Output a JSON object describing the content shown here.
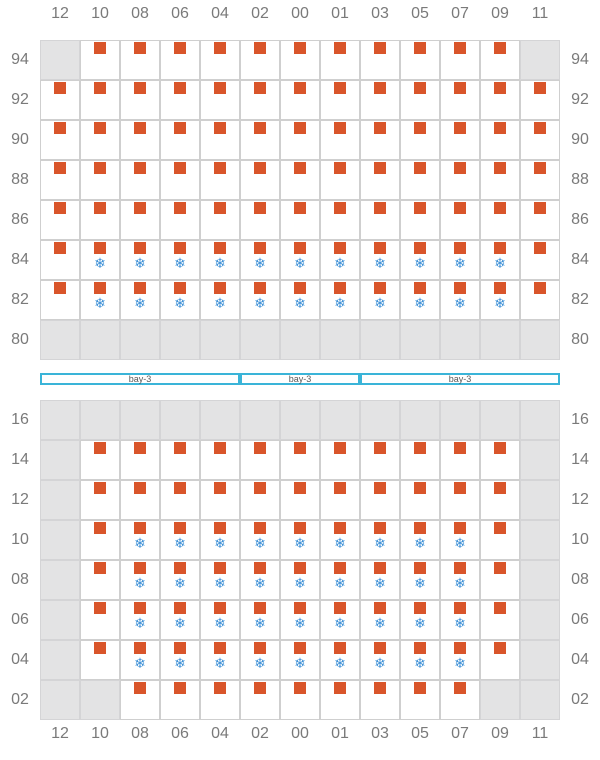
{
  "columns": [
    "12",
    "10",
    "08",
    "06",
    "04",
    "02",
    "00",
    "01",
    "03",
    "05",
    "07",
    "09",
    "11"
  ],
  "deck": {
    "rows": [
      "94",
      "92",
      "90",
      "88",
      "86",
      "84",
      "82",
      "80"
    ],
    "blocked": [
      [
        0,
        0
      ],
      [
        0,
        12
      ],
      [
        7,
        0
      ],
      [
        7,
        1
      ],
      [
        7,
        2
      ],
      [
        7,
        3
      ],
      [
        7,
        4
      ],
      [
        7,
        5
      ],
      [
        7,
        6
      ],
      [
        7,
        7
      ],
      [
        7,
        8
      ],
      [
        7,
        9
      ],
      [
        7,
        10
      ],
      [
        7,
        11
      ],
      [
        7,
        12
      ]
    ],
    "containers": [
      [
        0,
        1
      ],
      [
        0,
        2
      ],
      [
        0,
        3
      ],
      [
        0,
        4
      ],
      [
        0,
        5
      ],
      [
        0,
        6
      ],
      [
        0,
        7
      ],
      [
        0,
        8
      ],
      [
        0,
        9
      ],
      [
        0,
        10
      ],
      [
        0,
        11
      ],
      [
        1,
        0
      ],
      [
        1,
        1
      ],
      [
        1,
        2
      ],
      [
        1,
        3
      ],
      [
        1,
        4
      ],
      [
        1,
        5
      ],
      [
        1,
        6
      ],
      [
        1,
        7
      ],
      [
        1,
        8
      ],
      [
        1,
        9
      ],
      [
        1,
        10
      ],
      [
        1,
        11
      ],
      [
        1,
        12
      ],
      [
        2,
        0
      ],
      [
        2,
        1
      ],
      [
        2,
        2
      ],
      [
        2,
        3
      ],
      [
        2,
        4
      ],
      [
        2,
        5
      ],
      [
        2,
        6
      ],
      [
        2,
        7
      ],
      [
        2,
        8
      ],
      [
        2,
        9
      ],
      [
        2,
        10
      ],
      [
        2,
        11
      ],
      [
        2,
        12
      ],
      [
        3,
        0
      ],
      [
        3,
        1
      ],
      [
        3,
        2
      ],
      [
        3,
        3
      ],
      [
        3,
        4
      ],
      [
        3,
        5
      ],
      [
        3,
        6
      ],
      [
        3,
        7
      ],
      [
        3,
        8
      ],
      [
        3,
        9
      ],
      [
        3,
        10
      ],
      [
        3,
        11
      ],
      [
        3,
        12
      ],
      [
        4,
        0
      ],
      [
        4,
        1
      ],
      [
        4,
        2
      ],
      [
        4,
        3
      ],
      [
        4,
        4
      ],
      [
        4,
        5
      ],
      [
        4,
        6
      ],
      [
        4,
        7
      ],
      [
        4,
        8
      ],
      [
        4,
        9
      ],
      [
        4,
        10
      ],
      [
        4,
        11
      ],
      [
        4,
        12
      ],
      [
        5,
        0
      ],
      [
        5,
        1
      ],
      [
        5,
        2
      ],
      [
        5,
        3
      ],
      [
        5,
        4
      ],
      [
        5,
        5
      ],
      [
        5,
        6
      ],
      [
        5,
        7
      ],
      [
        5,
        8
      ],
      [
        5,
        9
      ],
      [
        5,
        10
      ],
      [
        5,
        11
      ],
      [
        5,
        12
      ],
      [
        6,
        0
      ],
      [
        6,
        1
      ],
      [
        6,
        2
      ],
      [
        6,
        3
      ],
      [
        6,
        4
      ],
      [
        6,
        5
      ],
      [
        6,
        6
      ],
      [
        6,
        7
      ],
      [
        6,
        8
      ],
      [
        6,
        9
      ],
      [
        6,
        10
      ],
      [
        6,
        11
      ],
      [
        6,
        12
      ]
    ],
    "reefers": [
      [
        5,
        1
      ],
      [
        5,
        2
      ],
      [
        5,
        3
      ],
      [
        5,
        4
      ],
      [
        5,
        5
      ],
      [
        5,
        6
      ],
      [
        5,
        7
      ],
      [
        5,
        8
      ],
      [
        5,
        9
      ],
      [
        5,
        10
      ],
      [
        5,
        11
      ],
      [
        6,
        1
      ],
      [
        6,
        2
      ],
      [
        6,
        3
      ],
      [
        6,
        4
      ],
      [
        6,
        5
      ],
      [
        6,
        6
      ],
      [
        6,
        7
      ],
      [
        6,
        8
      ],
      [
        6,
        9
      ],
      [
        6,
        10
      ],
      [
        6,
        11
      ]
    ]
  },
  "hatch_covers": [
    {
      "label": "bay-3",
      "from": 0,
      "to": 5
    },
    {
      "label": "bay-3",
      "from": 5,
      "to": 8
    },
    {
      "label": "bay-3",
      "from": 8,
      "to": 13
    }
  ],
  "hold": {
    "rows": [
      "16",
      "14",
      "12",
      "10",
      "08",
      "06",
      "04",
      "02"
    ],
    "blocked": [
      [
        0,
        0
      ],
      [
        0,
        1
      ],
      [
        0,
        2
      ],
      [
        0,
        3
      ],
      [
        0,
        4
      ],
      [
        0,
        5
      ],
      [
        0,
        6
      ],
      [
        0,
        7
      ],
      [
        0,
        8
      ],
      [
        0,
        9
      ],
      [
        0,
        10
      ],
      [
        0,
        11
      ],
      [
        0,
        12
      ],
      [
        1,
        0
      ],
      [
        1,
        12
      ],
      [
        2,
        0
      ],
      [
        2,
        12
      ],
      [
        3,
        0
      ],
      [
        3,
        12
      ],
      [
        4,
        0
      ],
      [
        4,
        12
      ],
      [
        5,
        0
      ],
      [
        5,
        12
      ],
      [
        6,
        0
      ],
      [
        6,
        12
      ],
      [
        7,
        0
      ],
      [
        7,
        1
      ],
      [
        7,
        11
      ],
      [
        7,
        12
      ]
    ],
    "containers": [
      [
        1,
        1
      ],
      [
        1,
        2
      ],
      [
        1,
        3
      ],
      [
        1,
        4
      ],
      [
        1,
        5
      ],
      [
        1,
        6
      ],
      [
        1,
        7
      ],
      [
        1,
        8
      ],
      [
        1,
        9
      ],
      [
        1,
        10
      ],
      [
        1,
        11
      ],
      [
        2,
        1
      ],
      [
        2,
        2
      ],
      [
        2,
        3
      ],
      [
        2,
        4
      ],
      [
        2,
        5
      ],
      [
        2,
        6
      ],
      [
        2,
        7
      ],
      [
        2,
        8
      ],
      [
        2,
        9
      ],
      [
        2,
        10
      ],
      [
        2,
        11
      ],
      [
        3,
        1
      ],
      [
        3,
        2
      ],
      [
        3,
        3
      ],
      [
        3,
        4
      ],
      [
        3,
        5
      ],
      [
        3,
        6
      ],
      [
        3,
        7
      ],
      [
        3,
        8
      ],
      [
        3,
        9
      ],
      [
        3,
        10
      ],
      [
        3,
        11
      ],
      [
        4,
        1
      ],
      [
        4,
        2
      ],
      [
        4,
        3
      ],
      [
        4,
        4
      ],
      [
        4,
        5
      ],
      [
        4,
        6
      ],
      [
        4,
        7
      ],
      [
        4,
        8
      ],
      [
        4,
        9
      ],
      [
        4,
        10
      ],
      [
        4,
        11
      ],
      [
        5,
        1
      ],
      [
        5,
        2
      ],
      [
        5,
        3
      ],
      [
        5,
        4
      ],
      [
        5,
        5
      ],
      [
        5,
        6
      ],
      [
        5,
        7
      ],
      [
        5,
        8
      ],
      [
        5,
        9
      ],
      [
        5,
        10
      ],
      [
        5,
        11
      ],
      [
        6,
        1
      ],
      [
        6,
        2
      ],
      [
        6,
        3
      ],
      [
        6,
        4
      ],
      [
        6,
        5
      ],
      [
        6,
        6
      ],
      [
        6,
        7
      ],
      [
        6,
        8
      ],
      [
        6,
        9
      ],
      [
        6,
        10
      ],
      [
        6,
        11
      ],
      [
        7,
        2
      ],
      [
        7,
        3
      ],
      [
        7,
        4
      ],
      [
        7,
        5
      ],
      [
        7,
        6
      ],
      [
        7,
        7
      ],
      [
        7,
        8
      ],
      [
        7,
        9
      ],
      [
        7,
        10
      ]
    ],
    "reefers": [
      [
        3,
        2
      ],
      [
        3,
        3
      ],
      [
        3,
        4
      ],
      [
        3,
        5
      ],
      [
        3,
        6
      ],
      [
        3,
        7
      ],
      [
        3,
        8
      ],
      [
        3,
        9
      ],
      [
        3,
        10
      ],
      [
        4,
        2
      ],
      [
        4,
        3
      ],
      [
        4,
        4
      ],
      [
        4,
        5
      ],
      [
        4,
        6
      ],
      [
        4,
        7
      ],
      [
        4,
        8
      ],
      [
        4,
        9
      ],
      [
        4,
        10
      ],
      [
        5,
        2
      ],
      [
        5,
        3
      ],
      [
        5,
        4
      ],
      [
        5,
        5
      ],
      [
        5,
        6
      ],
      [
        5,
        7
      ],
      [
        5,
        8
      ],
      [
        5,
        9
      ],
      [
        5,
        10
      ],
      [
        6,
        2
      ],
      [
        6,
        3
      ],
      [
        6,
        4
      ],
      [
        6,
        5
      ],
      [
        6,
        6
      ],
      [
        6,
        7
      ],
      [
        6,
        8
      ],
      [
        6,
        9
      ],
      [
        6,
        10
      ]
    ]
  },
  "colors": {
    "container": "#d9552a",
    "reefer": "#3b8fd6",
    "blocked": "#e3e3e4",
    "hatch": "#3ab4d8"
  },
  "icons": {
    "reefer": "snowflake-icon",
    "container": "container-icon"
  }
}
